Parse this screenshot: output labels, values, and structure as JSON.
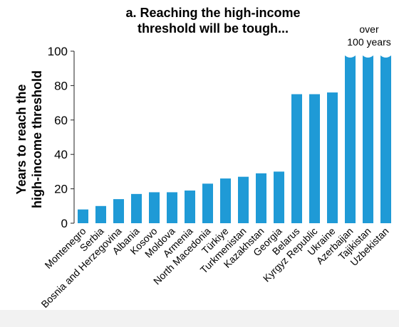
{
  "chart_data": {
    "type": "bar",
    "title_lines": [
      "a. Reaching the high-income",
      "threshold will be tough..."
    ],
    "ylabel_lines": [
      "Years to reach the",
      "high-income threshold"
    ],
    "xlabel": "",
    "ylim": [
      0,
      100
    ],
    "yticks": [
      0,
      20,
      40,
      60,
      80,
      100
    ],
    "grid": false,
    "bar_color": "#1f9ad6",
    "categories": [
      "Montenegro",
      "Serbia",
      "Bosnia and Herzegovina",
      "Albania",
      "Kosovo",
      "Moldova",
      "Armenia",
      "North Macedonia",
      "Türkiye",
      "Turkmenistan",
      "Kazakhstan",
      "Georgia",
      "Belarus",
      "Kyrgyz Republic",
      "Ukraine",
      "Azerbaijan",
      "Tajikistan",
      "Uzbekistan"
    ],
    "values": [
      8,
      10,
      14,
      17,
      18,
      18,
      19,
      23,
      26,
      27,
      29,
      30,
      75,
      75,
      76,
      100,
      100,
      100
    ],
    "truncated": [
      false,
      false,
      false,
      false,
      false,
      false,
      false,
      false,
      false,
      false,
      false,
      false,
      false,
      false,
      false,
      true,
      true,
      true
    ],
    "annotation_lines": [
      "over",
      "100 years"
    ]
  }
}
